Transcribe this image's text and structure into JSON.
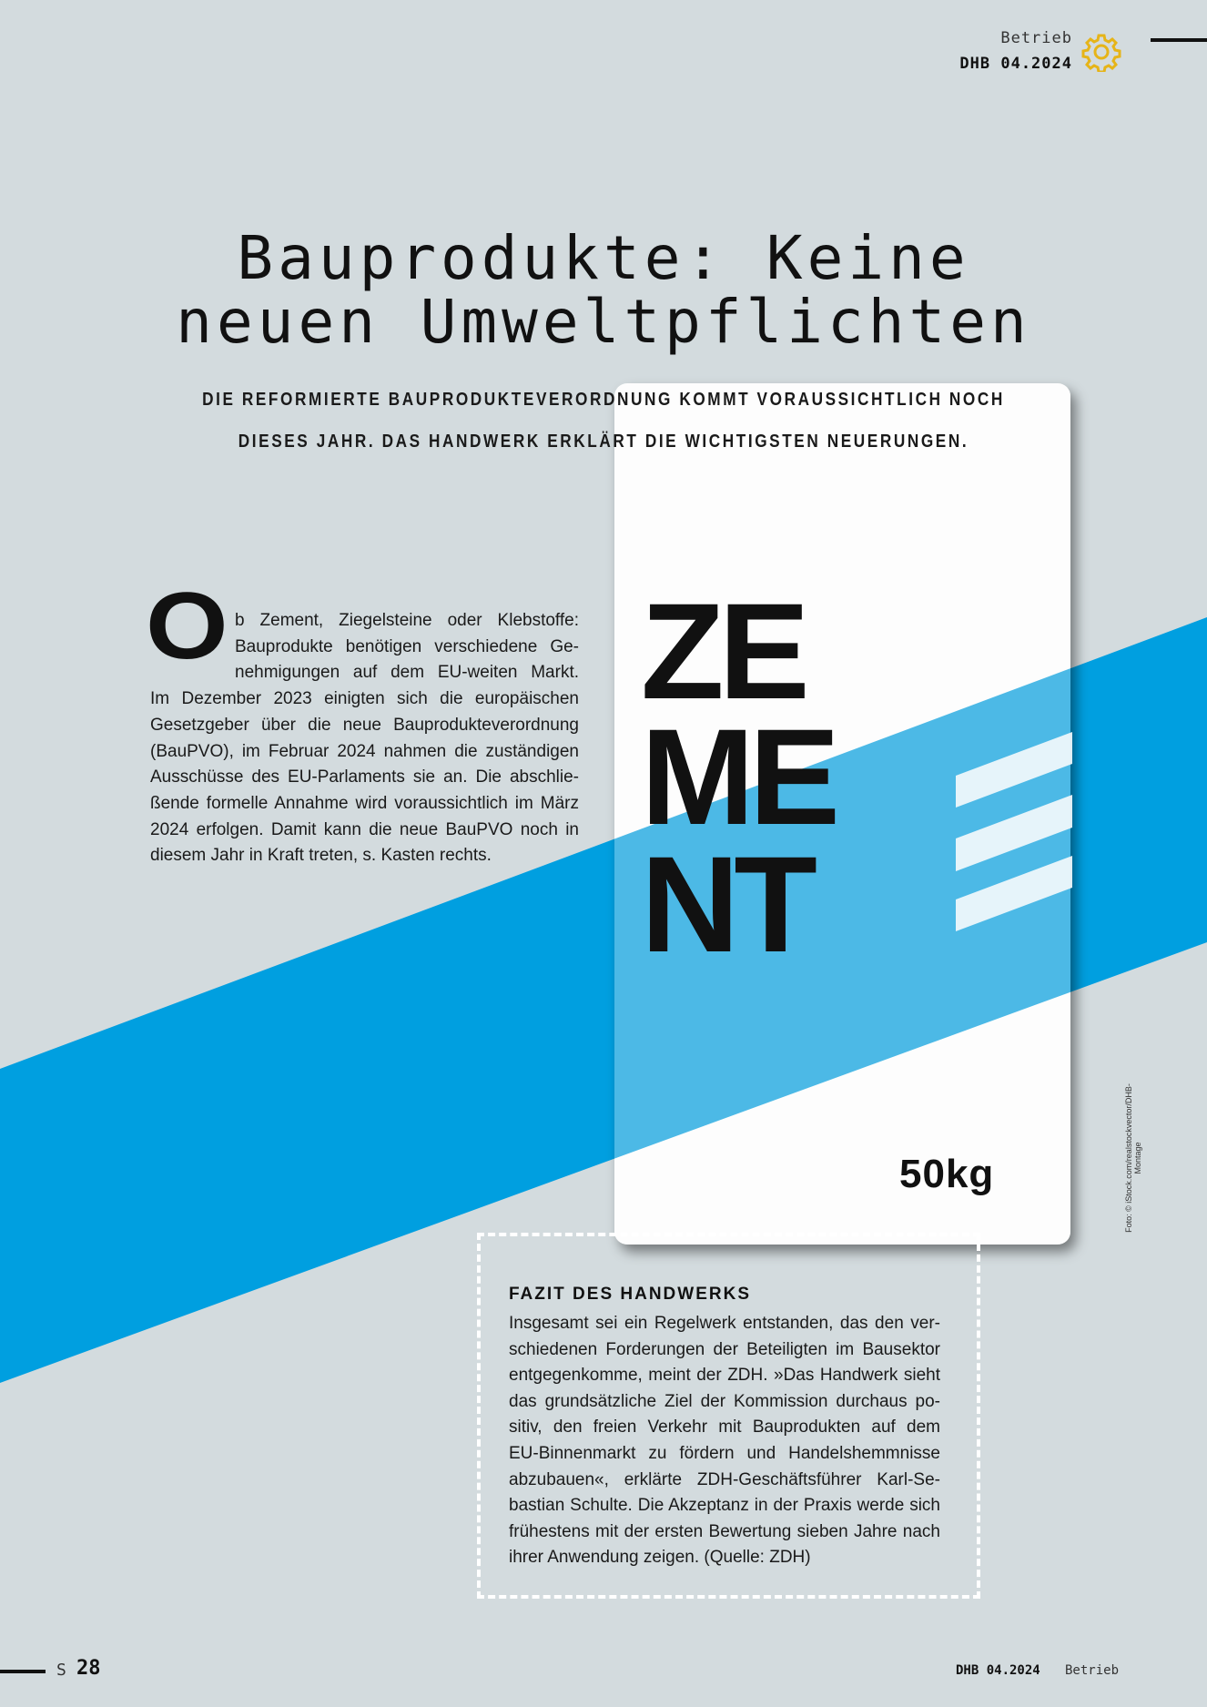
{
  "header": {
    "section": "Betrieb",
    "issue": "DHB 04.2024",
    "icon": "gear-icon",
    "accent_color": "#e6b418"
  },
  "title": {
    "lines": [
      "Bauprodukte: Keine",
      "neuen Umweltpflichten"
    ]
  },
  "subtitle": {
    "lines": [
      "DIE REFORMIERTE BAUPRODUKTEVERORDNUNG KOMMT VORAUSSICHTLICH NOCH",
      "DIESES JAHR. DAS HANDWERK ERKLÄRT DIE WICHTIGSTEN NEUERUNGEN."
    ]
  },
  "body": {
    "dropcap": "O",
    "lines": [
      "b Zement, Ziegelsteine oder Klebstoffe:",
      "Bauprodukte benötigen verschiedene Ge-",
      "nehmigungen auf dem EU-weiten Markt.",
      "Im Dezember 2023 einigten sich die europäischen",
      "Gesetzgeber über die neue Bauprodukteverordnung",
      "(BauPVO), im Februar 2024 nahmen die zuständigen",
      "Ausschüsse des EU-Parlaments sie an. Die abschlie-",
      "ßende formelle Annahme wird voraussichtlich im März",
      "2024 erfolgen. Damit kann die neue BauPVO noch in",
      "diesem Jahr in Kraft treten, s. Kasten rechts."
    ]
  },
  "image": {
    "bag_lines": [
      "ZE",
      "ME",
      "NT"
    ],
    "weight": "50kg",
    "credit": "Foto: © iStock.com/realstockvector/DHB-Montage",
    "band_color": "#009fe0",
    "band_on_bag_color": "#4cb9e6"
  },
  "box": {
    "heading": "FAZIT DES HANDWERKS",
    "lines": [
      "Insgesamt sei ein Regelwerk entstanden, das den ver-",
      "schiedenen Forderungen der Beteiligten im Bausektor",
      "entgegenkomme, meint der ZDH. »Das Handwerk sieht",
      "das grundsätzliche Ziel der Kommission durchaus po-",
      "sitiv, den freien Verkehr mit Bauprodukten auf dem",
      "EU-Binnenmarkt zu fördern und Handelshemmnisse",
      "abzubauen«, erklärte ZDH-Geschäftsführer Karl-Se-",
      "bastian Schulte. Die Akzeptanz in der Praxis werde sich",
      "frühestens mit der ersten Bewertung sieben Jahre nach",
      "ihrer Anwendung zeigen. (Quelle: ZDH)"
    ]
  },
  "footer": {
    "page_prefix": "S",
    "page": "28",
    "issue": "DHB 04.2024",
    "section": "Betrieb"
  }
}
